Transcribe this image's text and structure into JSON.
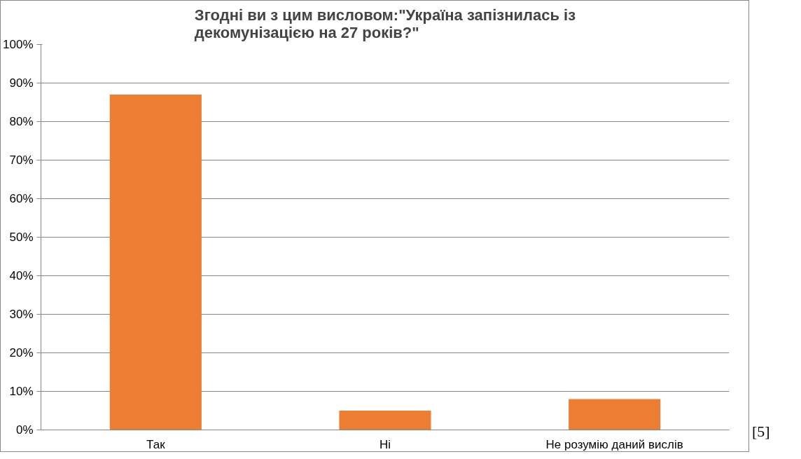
{
  "chart_data": {
    "type": "bar",
    "title": "Згодні ви з цим висловом:\"Україна запізнилась із декомунізацією на 27 років?\"",
    "categories": [
      "Так",
      "Ні",
      "Не розумію даний вислів"
    ],
    "values": [
      0.87,
      0.05,
      0.08
    ],
    "color": "#ed7d31",
    "ylim": [
      0,
      1
    ],
    "yticks": [
      {
        "value": 0,
        "label": "0%"
      },
      {
        "value": 0.1,
        "label": "10%"
      },
      {
        "value": 0.2,
        "label": "20%"
      },
      {
        "value": 0.3,
        "label": "30%"
      },
      {
        "value": 0.4,
        "label": "40%"
      },
      {
        "value": 0.5,
        "label": "50%"
      },
      {
        "value": 0.6,
        "label": "60%"
      },
      {
        "value": 0.7,
        "label": "70%"
      },
      {
        "value": 0.8,
        "label": "80%"
      },
      {
        "value": 0.9,
        "label": "90%"
      },
      {
        "value": 1,
        "label": "100%"
      }
    ],
    "grid": "y",
    "annotations": [
      "[5]"
    ]
  }
}
